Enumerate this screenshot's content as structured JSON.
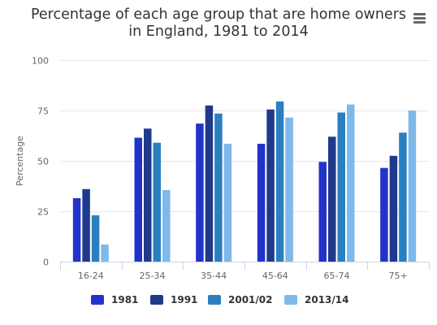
{
  "chart_data": {
    "type": "bar",
    "title": "Percentage of each age group that are home owners in England, 1981 to 2014",
    "title_lines": [
      "Percentage of each age group that are home owners",
      "in England, 1981 to 2014"
    ],
    "xlabel": "",
    "ylabel": "Percentage",
    "ylim": [
      0,
      100
    ],
    "yticks": [
      "0",
      "25",
      "50",
      "75",
      "100"
    ],
    "grid": true,
    "legend_position": "bottom",
    "categories": [
      "16-24",
      "25-34",
      "35-44",
      "45-64",
      "65-74",
      "75+"
    ],
    "series": [
      {
        "name": "1981",
        "color": "#2233cc",
        "values": [
          31.5,
          61.5,
          68.5,
          58.5,
          49.5,
          46.5
        ]
      },
      {
        "name": "1991",
        "color": "#1f3a8a",
        "values": [
          36,
          66,
          77.5,
          75.5,
          62,
          52.5
        ]
      },
      {
        "name": "2001/02",
        "color": "#2a7fc0",
        "values": [
          23,
          59,
          73.5,
          79.5,
          74,
          64
        ]
      },
      {
        "name": "2013/14",
        "color": "#7fb9ea",
        "values": [
          8.5,
          35.5,
          58.5,
          71.5,
          78,
          75
        ]
      }
    ]
  },
  "toolbar": {
    "menu_icon": "hamburger-menu-icon"
  }
}
